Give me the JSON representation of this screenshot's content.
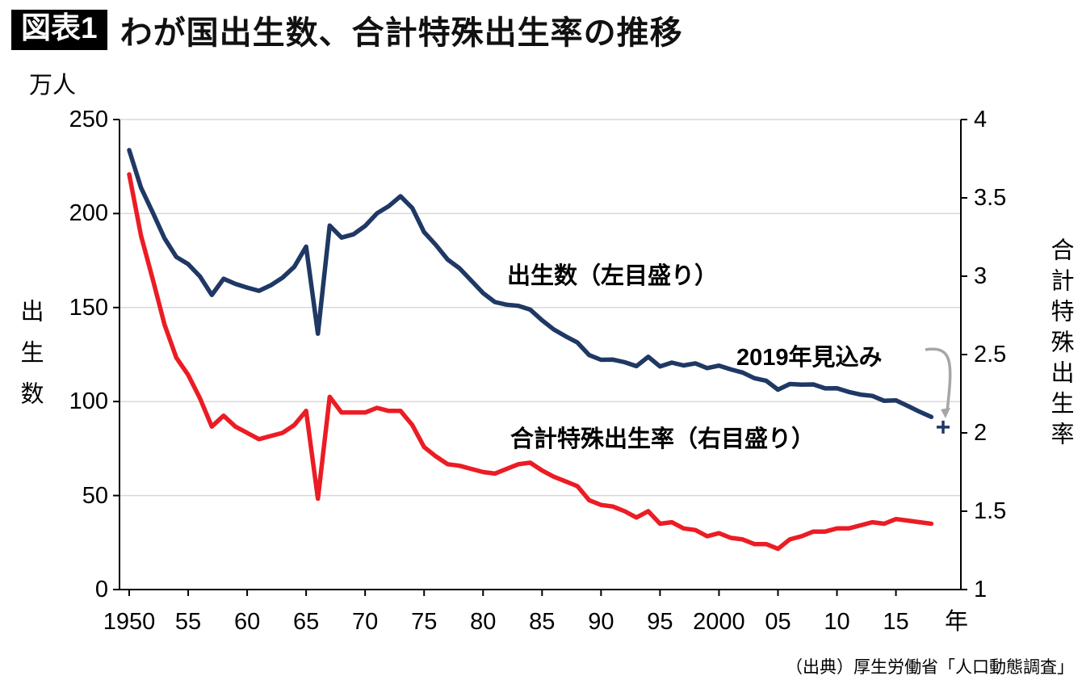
{
  "header": {
    "badge": "図表1",
    "title": "わが国出生数、合計特殊出生率の推移"
  },
  "labels": {
    "unit_label": "万人",
    "left_axis_title": "出生数",
    "right_axis_title": "合計特殊出生率",
    "births_label": "出生数（左目盛り）",
    "tfr_label": "合計特殊出生率（右目盛り）",
    "projection_label": "2019年見込み",
    "year_suffix": "年"
  },
  "source": "（出典）厚生労働省「人口動態調査」",
  "chart_data": {
    "type": "line",
    "title": "わが国出生数、合計特殊出生率の推移",
    "grid": "horizontal",
    "legend_position": "in-plot-labels",
    "style": {
      "grid_color": "#d9d9d9",
      "axis_color": "#000000",
      "arrow_color": "#a6a6a6",
      "background": "#ffffff"
    },
    "x": [
      1950,
      1951,
      1952,
      1953,
      1954,
      1955,
      1956,
      1957,
      1958,
      1959,
      1960,
      1961,
      1962,
      1963,
      1964,
      1965,
      1966,
      1967,
      1968,
      1969,
      1970,
      1971,
      1972,
      1973,
      1974,
      1975,
      1976,
      1977,
      1978,
      1979,
      1980,
      1981,
      1982,
      1983,
      1984,
      1985,
      1986,
      1987,
      1988,
      1989,
      1990,
      1991,
      1992,
      1993,
      1994,
      1995,
      1996,
      1997,
      1998,
      1999,
      2000,
      2001,
      2002,
      2003,
      2004,
      2005,
      2006,
      2007,
      2008,
      2009,
      2010,
      2011,
      2012,
      2013,
      2014,
      2015,
      2016,
      2017,
      2018
    ],
    "series": [
      {
        "name": "出生数（左目盛り）",
        "axis": "left",
        "unit": "万人",
        "color": "#1f3864",
        "values": [
          233.7,
          213.8,
          200.5,
          186.8,
          176.9,
          173.1,
          166.5,
          156.7,
          165.3,
          162.6,
          160.6,
          158.9,
          161.8,
          165.9,
          171.7,
          182.4,
          136.1,
          193.6,
          187.2,
          188.9,
          193.4,
          200.1,
          203.9,
          209.2,
          202.9,
          190.1,
          183.3,
          175.5,
          170.9,
          164.3,
          157.7,
          152.9,
          151.5,
          150.9,
          148.9,
          143.2,
          138.3,
          134.7,
          131.4,
          124.7,
          122.2,
          122.3,
          120.9,
          118.8,
          123.8,
          118.7,
          120.7,
          119.2,
          120.3,
          117.8,
          119.1,
          117.1,
          115.4,
          112.4,
          111.1,
          106.3,
          109.3,
          109.0,
          109.1,
          107.0,
          107.1,
          105.1,
          103.7,
          103.0,
          100.4,
          100.6,
          97.7,
          94.6,
          91.8
        ]
      },
      {
        "name": "合計特殊出生率（右目盛り）",
        "axis": "right",
        "color": "#ec1c24",
        "values": [
          3.65,
          3.26,
          2.98,
          2.69,
          2.48,
          2.37,
          2.22,
          2.04,
          2.11,
          2.04,
          2.0,
          1.96,
          1.98,
          2.0,
          2.05,
          2.14,
          1.58,
          2.23,
          2.13,
          2.13,
          2.13,
          2.16,
          2.14,
          2.14,
          2.05,
          1.91,
          1.85,
          1.8,
          1.79,
          1.77,
          1.75,
          1.74,
          1.77,
          1.8,
          1.81,
          1.76,
          1.72,
          1.69,
          1.66,
          1.57,
          1.54,
          1.53,
          1.5,
          1.46,
          1.5,
          1.42,
          1.43,
          1.39,
          1.38,
          1.34,
          1.36,
          1.33,
          1.32,
          1.29,
          1.29,
          1.26,
          1.32,
          1.34,
          1.37,
          1.37,
          1.39,
          1.39,
          1.41,
          1.43,
          1.42,
          1.45,
          1.44,
          1.43,
          1.42
        ]
      }
    ],
    "projection": {
      "label": "2019年見込み",
      "year": 2019,
      "series": "出生数",
      "axis": "left",
      "value": 86.4,
      "marker": "plus"
    },
    "left_axis": {
      "unit": "万人",
      "title": "出生数",
      "range": [
        0,
        250
      ],
      "ticks": [
        0,
        50,
        100,
        150,
        200,
        250
      ]
    },
    "right_axis": {
      "title": "合計特殊出生率",
      "range": [
        1,
        4
      ],
      "ticks": [
        "1",
        "1.5",
        "2",
        "2.5",
        "3",
        "3.5",
        "4"
      ]
    },
    "x_axis": {
      "suffix": "年",
      "tick_years": [
        1950,
        1955,
        1960,
        1965,
        1970,
        1975,
        1980,
        1985,
        1990,
        1995,
        2000,
        2005,
        2010,
        2015
      ],
      "tick_labels": [
        "1950",
        "55",
        "60",
        "65",
        "70",
        "75",
        "80",
        "85",
        "90",
        "95",
        "2000",
        "05",
        "10",
        "15"
      ]
    }
  }
}
